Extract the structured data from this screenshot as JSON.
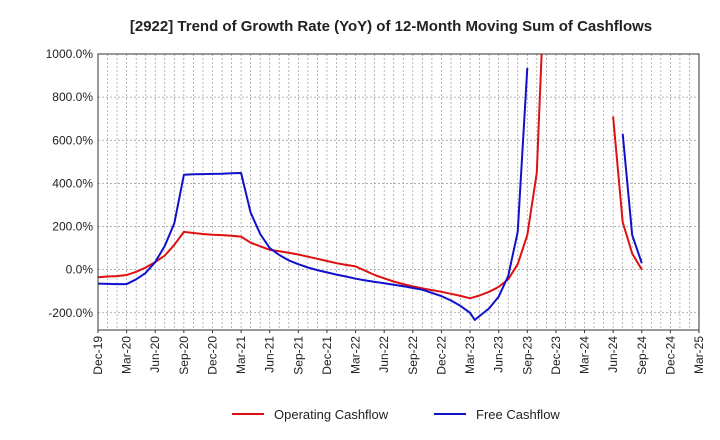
{
  "chart_data": {
    "type": "line",
    "title": "[2922]  Trend of Growth Rate (YoY) of 12-Month Moving Sum of Cashflows",
    "xlabel": "",
    "ylabel": "",
    "ylim": [
      -280,
      1000
    ],
    "y_ticks": [
      {
        "value": 1000,
        "label": "1000.0%"
      },
      {
        "value": 800,
        "label": "800.0%"
      },
      {
        "value": 600,
        "label": "600.0%"
      },
      {
        "value": 400,
        "label": "400.0%"
      },
      {
        "value": 200,
        "label": "200.0%"
      },
      {
        "value": 0,
        "label": "0.0%"
      },
      {
        "value": -200,
        "label": "-200.0%"
      }
    ],
    "x_ticks": [
      {
        "month": 0,
        "label": "Dec-19"
      },
      {
        "month": 3,
        "label": "Mar-20"
      },
      {
        "month": 6,
        "label": "Jun-20"
      },
      {
        "month": 9,
        "label": "Sep-20"
      },
      {
        "month": 12,
        "label": "Dec-20"
      },
      {
        "month": 15,
        "label": "Mar-21"
      },
      {
        "month": 18,
        "label": "Jun-21"
      },
      {
        "month": 21,
        "label": "Sep-21"
      },
      {
        "month": 24,
        "label": "Dec-21"
      },
      {
        "month": 27,
        "label": "Mar-22"
      },
      {
        "month": 30,
        "label": "Jun-22"
      },
      {
        "month": 33,
        "label": "Sep-22"
      },
      {
        "month": 36,
        "label": "Dec-22"
      },
      {
        "month": 39,
        "label": "Mar-23"
      },
      {
        "month": 42,
        "label": "Jun-23"
      },
      {
        "month": 45,
        "label": "Sep-23"
      },
      {
        "month": 48,
        "label": "Dec-23"
      },
      {
        "month": 51,
        "label": "Mar-24"
      },
      {
        "month": 54,
        "label": "Jun-24"
      },
      {
        "month": 57,
        "label": "Sep-24"
      },
      {
        "month": 60,
        "label": "Dec-24"
      },
      {
        "month": 63,
        "label": "Mar-25"
      }
    ],
    "xlim": [
      0,
      63
    ],
    "grid": true,
    "legend_position": "bottom",
    "series": [
      {
        "name": "Operating Cashflow",
        "color": "#dd1111",
        "segments": [
          [
            [
              0,
              -35
            ],
            [
              1,
              -32
            ],
            [
              2,
              -30
            ],
            [
              3,
              -25
            ],
            [
              4,
              -10
            ],
            [
              5,
              10
            ],
            [
              6,
              35
            ],
            [
              7,
              65
            ],
            [
              8,
              115
            ],
            [
              9,
              175
            ],
            [
              10,
              170
            ],
            [
              11,
              165
            ],
            [
              12,
              162
            ],
            [
              13,
              160
            ],
            [
              14,
              157
            ],
            [
              15,
              153
            ],
            [
              16,
              125
            ],
            [
              17,
              108
            ],
            [
              18,
              92
            ],
            [
              19,
              85
            ],
            [
              20,
              78
            ],
            [
              21,
              70
            ],
            [
              22,
              60
            ],
            [
              23,
              50
            ],
            [
              24,
              40
            ],
            [
              25,
              30
            ],
            [
              26,
              22
            ],
            [
              27,
              15
            ],
            [
              28,
              -5
            ],
            [
              29,
              -25
            ],
            [
              30,
              -40
            ],
            [
              31,
              -55
            ],
            [
              32,
              -67
            ],
            [
              33,
              -78
            ],
            [
              34,
              -87
            ],
            [
              35,
              -95
            ],
            [
              36,
              -103
            ],
            [
              37,
              -112
            ],
            [
              38,
              -122
            ],
            [
              39,
              -133
            ],
            [
              40,
              -120
            ],
            [
              41,
              -103
            ],
            [
              42,
              -80
            ],
            [
              43,
              -45
            ],
            [
              44,
              25
            ],
            [
              45,
              160
            ],
            [
              46,
              450
            ],
            [
              46.5,
              1000
            ]
          ],
          [
            [
              54,
              710
            ],
            [
              55,
              220
            ],
            [
              56,
              75
            ],
            [
              57,
              0
            ]
          ]
        ]
      },
      {
        "name": "Free Cashflow",
        "color": "#1111cc",
        "segments": [
          [
            [
              0,
              -65
            ],
            [
              1,
              -66
            ],
            [
              2,
              -67
            ],
            [
              3,
              -67
            ],
            [
              4,
              -45
            ],
            [
              5,
              -15
            ],
            [
              6,
              35
            ],
            [
              7,
              110
            ],
            [
              8,
              215
            ],
            [
              9,
              440
            ],
            [
              10,
              442
            ],
            [
              11,
              443
            ],
            [
              12,
              444
            ],
            [
              13,
              445
            ],
            [
              14,
              447
            ],
            [
              15,
              448
            ],
            [
              16,
              265
            ],
            [
              17,
              165
            ],
            [
              18,
              100
            ],
            [
              19,
              68
            ],
            [
              20,
              43
            ],
            [
              21,
              25
            ],
            [
              22,
              10
            ],
            [
              23,
              -2
            ],
            [
              24,
              -13
            ],
            [
              25,
              -23
            ],
            [
              26,
              -32
            ],
            [
              27,
              -42
            ],
            [
              28,
              -50
            ],
            [
              29,
              -57
            ],
            [
              30,
              -63
            ],
            [
              31,
              -70
            ],
            [
              32,
              -77
            ],
            [
              33,
              -85
            ],
            [
              34,
              -93
            ],
            [
              35,
              -108
            ],
            [
              36,
              -123
            ],
            [
              37,
              -143
            ],
            [
              38,
              -168
            ],
            [
              39,
              -200
            ],
            [
              39.5,
              -233
            ],
            [
              40,
              -215
            ],
            [
              41,
              -180
            ],
            [
              42,
              -125
            ],
            [
              43,
              -30
            ],
            [
              44,
              175
            ],
            [
              45,
              935
            ]
          ],
          [
            [
              55,
              630
            ],
            [
              56,
              160
            ],
            [
              57,
              30
            ]
          ]
        ]
      }
    ]
  }
}
